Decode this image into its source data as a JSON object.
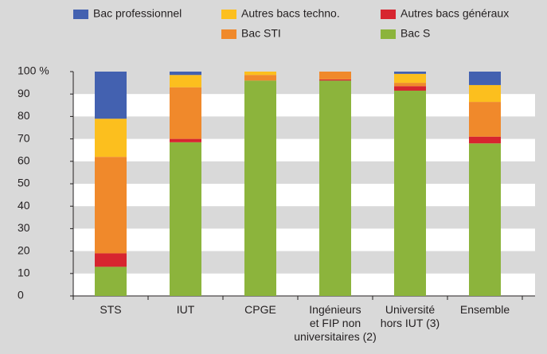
{
  "chart_data": {
    "type": "stacked_bar",
    "categories": [
      "STS",
      "IUT",
      "CPGE",
      "Ingénieurs\net FIP non\nuniversitaires (2)",
      "Université\nhors IUT (3)",
      "Ensemble"
    ],
    "series": [
      {
        "name": "Bac S",
        "color": "#8cb43c",
        "values": [
          13,
          68.5,
          96,
          96,
          91.5,
          68
        ]
      },
      {
        "name": "Autres bacs généraux",
        "color": "#d7252f",
        "values": [
          6,
          1.5,
          0,
          0.5,
          2,
          3
        ]
      },
      {
        "name": "Bac STI",
        "color": "#f0892b",
        "values": [
          43,
          23,
          2.5,
          3.5,
          1.5,
          15.5
        ]
      },
      {
        "name": "Autres bacs techno.",
        "color": "#fcbf1e",
        "values": [
          17,
          5.5,
          1.5,
          0,
          4,
          7.5
        ]
      },
      {
        "name": "Bac professionnel",
        "color": "#4361b0",
        "values": [
          21,
          1.5,
          0,
          0,
          1,
          6
        ]
      }
    ],
    "ylim": [
      0,
      100
    ],
    "yticks": [
      0,
      10,
      20,
      30,
      40,
      50,
      60,
      70,
      80,
      90,
      {
        "value": 100,
        "label": "100 %"
      }
    ],
    "bands": true
  }
}
